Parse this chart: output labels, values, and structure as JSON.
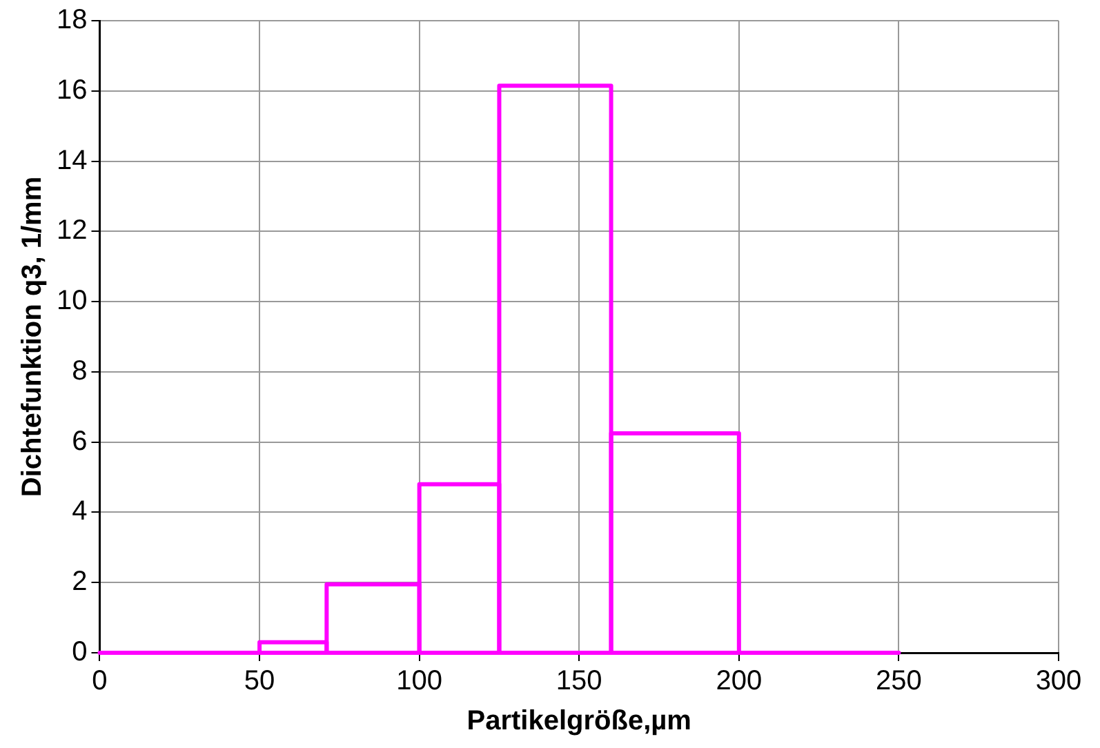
{
  "chart_data": {
    "type": "histogram",
    "xlabel": "Partikelgröße,µm",
    "ylabel": "Dichtefunktion q3, 1/mm",
    "bins": [
      0,
      50,
      71,
      100,
      125,
      160,
      200,
      250
    ],
    "values": [
      0,
      0.3,
      1.95,
      4.8,
      16.15,
      6.25,
      0
    ],
    "color": "#ff00ff",
    "xlim": [
      0,
      300
    ],
    "xticks": [
      0,
      50,
      100,
      150,
      200,
      250,
      300
    ],
    "ylim": [
      0,
      18
    ],
    "yticks": [
      0,
      2,
      4,
      6,
      8,
      10,
      12,
      14,
      16,
      18
    ],
    "grid": true
  }
}
